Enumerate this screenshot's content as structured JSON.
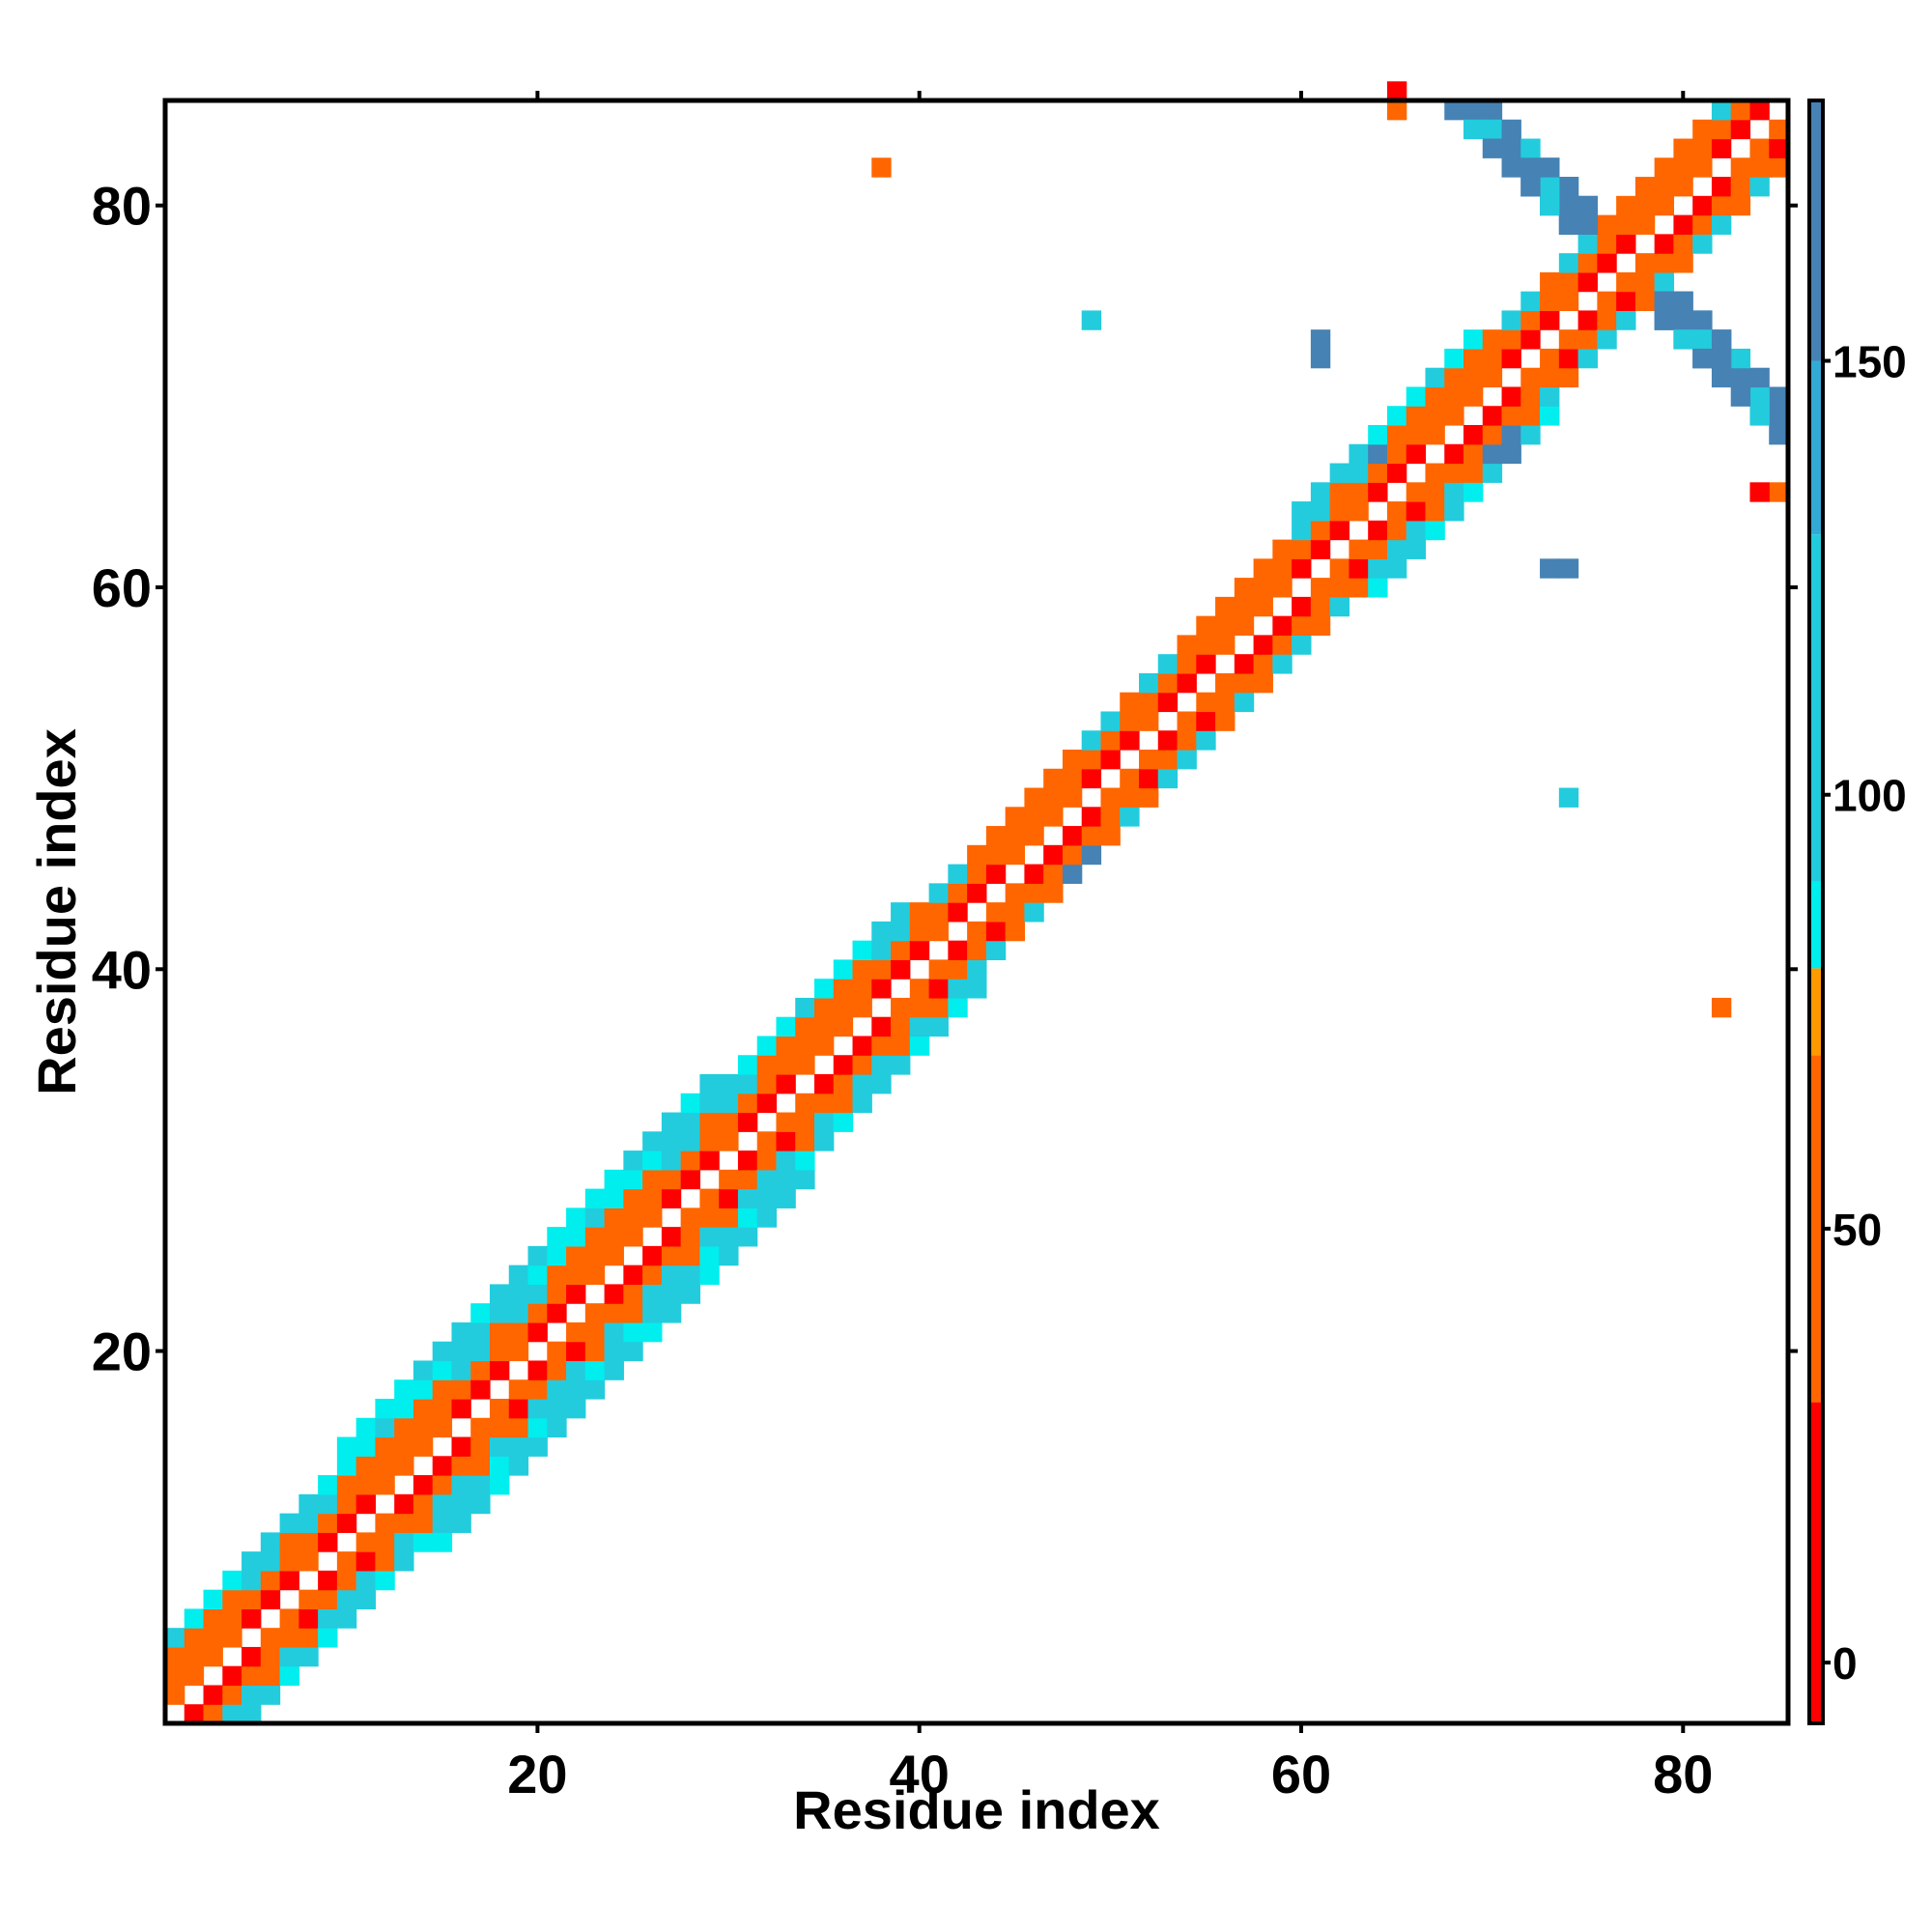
{
  "chart_data": {
    "type": "heatmap",
    "title": "",
    "xlabel": "Residue index",
    "ylabel": "Residue index",
    "xlim": [
      0.5,
      85.5
    ],
    "ylim": [
      0.5,
      85.5
    ],
    "xticks": [
      20,
      40,
      60,
      80
    ],
    "yticks": [
      20,
      40,
      60,
      80
    ],
    "grid": false,
    "colorbar": {
      "position": "right",
      "range": [
        -7,
        180
      ],
      "ticks": [
        0,
        50,
        100,
        150
      ],
      "segments": [
        {
          "from": -7,
          "to": 30,
          "color": "#ff0000"
        },
        {
          "from": 30,
          "to": 70,
          "color": "#ff6600"
        },
        {
          "from": 70,
          "to": 80,
          "color": "#ff9900"
        },
        {
          "from": 80,
          "to": 90,
          "color": "#00eeee"
        },
        {
          "from": 90,
          "to": 130,
          "color": "#22ccdd"
        },
        {
          "from": 130,
          "to": 150,
          "color": "#33aad6"
        },
        {
          "from": 150,
          "to": 180,
          "color": "#4682b4"
        }
      ]
    },
    "note_values": "cells: [i, j, value]; value approximates distance-like score mapped to colorbar",
    "cells": []
  }
}
